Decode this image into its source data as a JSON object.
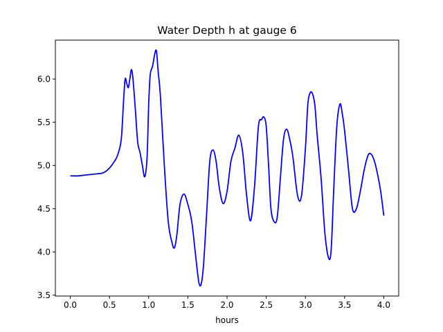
{
  "chart_data": {
    "type": "line",
    "title": "Water Depth h at gauge 6",
    "xlabel": "hours",
    "ylabel": "",
    "xlim": [
      -0.19,
      4.19
    ],
    "ylim": [
      3.49,
      6.45
    ],
    "xticks": [
      0.0,
      0.5,
      1.0,
      1.5,
      2.0,
      2.5,
      3.0,
      3.5,
      4.0
    ],
    "xtick_labels": [
      "0.0",
      "0.5",
      "1.0",
      "1.5",
      "2.0",
      "2.5",
      "3.0",
      "3.5",
      "4.0"
    ],
    "yticks": [
      3.5,
      4.0,
      4.5,
      5.0,
      5.5,
      6.0
    ],
    "ytick_labels": [
      "3.5",
      "4.0",
      "4.5",
      "5.0",
      "5.5",
      "6.0"
    ],
    "grid": false,
    "legend": "none",
    "series": [
      {
        "color": "#0000ff",
        "x": [
          0.0,
          0.1,
          0.2,
          0.3,
          0.4,
          0.45,
          0.5,
          0.55,
          0.6,
          0.65,
          0.68,
          0.7,
          0.72,
          0.74,
          0.76,
          0.78,
          0.8,
          0.83,
          0.86,
          0.89,
          0.92,
          0.95,
          0.98,
          1.0,
          1.02,
          1.05,
          1.08,
          1.1,
          1.12,
          1.15,
          1.2,
          1.25,
          1.3,
          1.33,
          1.36,
          1.4,
          1.45,
          1.5,
          1.55,
          1.6,
          1.64,
          1.67,
          1.7,
          1.74,
          1.78,
          1.82,
          1.86,
          1.9,
          1.95,
          2.0,
          2.05,
          2.1,
          2.15,
          2.2,
          2.25,
          2.3,
          2.35,
          2.4,
          2.44,
          2.47,
          2.5,
          2.53,
          2.56,
          2.6,
          2.64,
          2.68,
          2.72,
          2.76,
          2.8,
          2.84,
          2.9,
          2.95,
          3.0,
          3.03,
          3.06,
          3.09,
          3.12,
          3.15,
          3.2,
          3.25,
          3.3,
          3.33,
          3.36,
          3.4,
          3.44,
          3.47,
          3.5,
          3.55,
          3.6,
          3.65,
          3.7,
          3.75,
          3.8,
          3.84,
          3.88,
          3.92,
          3.96,
          4.0
        ],
        "y": [
          4.88,
          4.88,
          4.89,
          4.9,
          4.91,
          4.93,
          4.97,
          5.03,
          5.11,
          5.3,
          5.75,
          6.0,
          5.95,
          5.9,
          6.0,
          6.11,
          6.0,
          5.65,
          5.27,
          5.15,
          5.0,
          4.87,
          5.1,
          5.7,
          6.05,
          6.15,
          6.3,
          6.32,
          6.1,
          5.8,
          5.0,
          4.35,
          4.1,
          4.05,
          4.2,
          4.55,
          4.67,
          4.55,
          4.35,
          3.95,
          3.65,
          3.63,
          3.85,
          4.45,
          5.05,
          5.18,
          5.05,
          4.75,
          4.56,
          4.7,
          5.05,
          5.2,
          5.35,
          5.15,
          4.65,
          4.36,
          4.75,
          5.45,
          5.53,
          5.56,
          5.45,
          5.0,
          4.5,
          4.35,
          4.4,
          4.85,
          5.3,
          5.42,
          5.3,
          5.1,
          4.65,
          4.65,
          5.2,
          5.7,
          5.84,
          5.83,
          5.7,
          5.35,
          4.85,
          4.2,
          3.92,
          4.05,
          4.7,
          5.45,
          5.71,
          5.6,
          5.4,
          4.95,
          4.5,
          4.5,
          4.7,
          4.95,
          5.12,
          5.13,
          5.05,
          4.9,
          4.7,
          4.42
        ]
      }
    ]
  }
}
